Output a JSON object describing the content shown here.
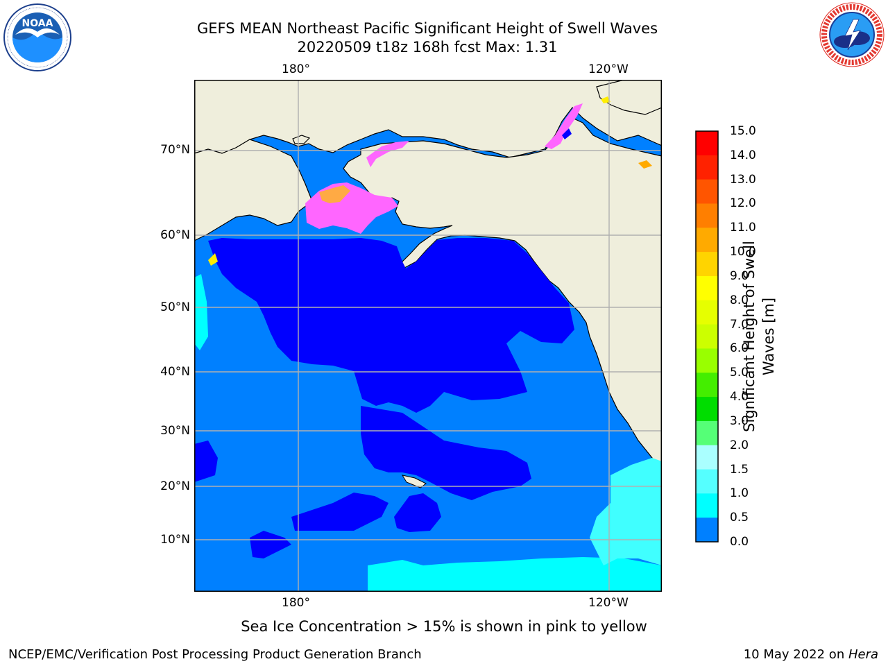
{
  "header": {
    "title_line1": "GEFS MEAN Northeast Pacific Significant Height of Swell Waves",
    "title_line2": "20220509 t18z 168h fcst   Max: 1.31"
  },
  "logos": {
    "noaa_text": "NOAA",
    "noaa_ring": "NATIONAL OCEANIC AND ATMOSPHERIC ADMINISTRATION · U.S. DEPARTMENT OF COMMERCE",
    "nws_ring": "NATIONAL WEATHER SERVICE"
  },
  "map": {
    "lon_labels_top": [
      "180°",
      "120°W"
    ],
    "lon_labels_bottom": [
      "180°",
      "120°W"
    ],
    "lat_labels": [
      "70°N",
      "60°N",
      "50°N",
      "40°N",
      "30°N",
      "20°N",
      "10°N"
    ],
    "colors": {
      "land": "#efeedc",
      "ocean_low": "#0000ff",
      "ocean_mid": "#0080ff",
      "ocean_cyan": "#00ffff",
      "ocean_lightcyan": "#40ffff",
      "ice_pink": "#ff66ff",
      "ice_orange": "#ffaa44",
      "ice_yellow": "#ffee00",
      "gridline": "#b0b0b0"
    }
  },
  "colorbar": {
    "label_line1": "Significant Height of Swell",
    "label_line2": "Waves [m]",
    "ticks": [
      "15.0",
      "14.0",
      "13.0",
      "12.0",
      "11.0",
      "10.0",
      "9.0",
      "8.0",
      "7.0",
      "6.0",
      "5.0",
      "4.0",
      "3.0",
      "2.0",
      "1.5",
      "1.0",
      "0.5",
      "0.0"
    ],
    "colors": [
      "#ff0000",
      "#ff2200",
      "#ff5500",
      "#ff7f00",
      "#ffaa00",
      "#ffd400",
      "#ffff00",
      "#e6ff00",
      "#ccff00",
      "#99ff00",
      "#44ee00",
      "#00dd00",
      "#55ff77",
      "#aaffff",
      "#55ffff",
      "#00ffff",
      "#0080ff",
      "#0000ff"
    ]
  },
  "caption": "Sea Ice Concentration > 15% is shown in pink to yellow",
  "footer": {
    "left": "NCEP/EMC/Verification Post Processing Product Generation Branch",
    "date": "10 May 2022 on ",
    "machine": "Hera"
  }
}
